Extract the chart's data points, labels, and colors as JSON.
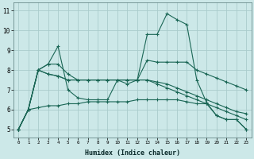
{
  "xlabel": "Humidex (Indice chaleur)",
  "bg_color": "#cce8e8",
  "grid_color": "#aacccc",
  "line_color": "#1a6655",
  "xlim": [
    -0.5,
    23.5
  ],
  "ylim": [
    4.6,
    11.4
  ],
  "xticks": [
    0,
    1,
    2,
    3,
    4,
    5,
    6,
    7,
    8,
    9,
    10,
    11,
    12,
    13,
    14,
    15,
    16,
    17,
    18,
    19,
    20,
    21,
    22,
    23
  ],
  "yticks": [
    5,
    6,
    7,
    8,
    9,
    10,
    11
  ],
  "series": [
    [
      5.0,
      6.0,
      8.0,
      8.3,
      9.2,
      7.0,
      6.6,
      6.5,
      6.5,
      6.5,
      7.5,
      7.3,
      7.5,
      9.8,
      9.8,
      10.85,
      10.55,
      10.3,
      7.5,
      6.35,
      5.7,
      5.5,
      5.5,
      5.0
    ],
    [
      5.0,
      6.0,
      8.0,
      8.3,
      8.3,
      7.8,
      7.5,
      7.5,
      7.5,
      7.5,
      7.5,
      7.5,
      7.5,
      8.5,
      8.4,
      8.4,
      8.4,
      8.4,
      8.0,
      7.8,
      7.6,
      7.4,
      7.2,
      7.0
    ],
    [
      5.0,
      6.0,
      8.0,
      7.8,
      7.7,
      7.5,
      7.5,
      7.5,
      7.5,
      7.5,
      7.5,
      7.5,
      7.5,
      7.5,
      7.4,
      7.3,
      7.1,
      6.9,
      6.7,
      6.5,
      6.3,
      6.1,
      5.9,
      5.8
    ],
    [
      5.0,
      6.0,
      8.0,
      7.8,
      7.7,
      7.5,
      7.5,
      7.5,
      7.5,
      7.5,
      7.5,
      7.5,
      7.5,
      7.5,
      7.3,
      7.1,
      6.9,
      6.7,
      6.5,
      6.3,
      6.1,
      5.9,
      5.7,
      5.5
    ],
    [
      5.0,
      6.0,
      6.1,
      6.2,
      6.2,
      6.3,
      6.3,
      6.4,
      6.4,
      6.4,
      6.4,
      6.4,
      6.5,
      6.5,
      6.5,
      6.5,
      6.5,
      6.4,
      6.3,
      6.3,
      5.7,
      5.5,
      5.5,
      5.0
    ]
  ]
}
